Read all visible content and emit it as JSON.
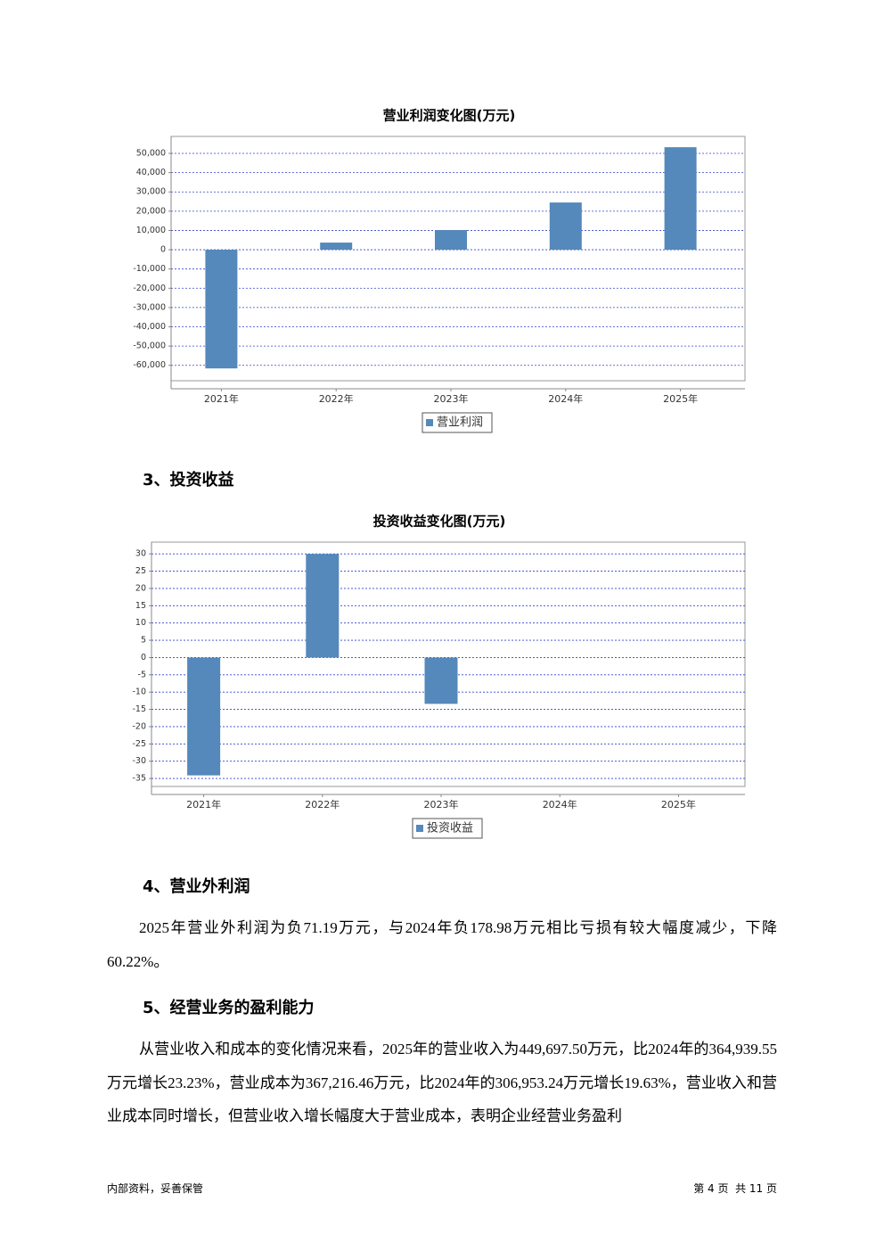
{
  "chart_data": [
    {
      "type": "bar",
      "title": "营业利润变化图(万元)",
      "categories": [
        "2021年",
        "2022年",
        "2023年",
        "2024年",
        "2025年"
      ],
      "series": [
        {
          "name": "营业利润",
          "color": "#5588bb",
          "values": [
            -61600,
            3700,
            10200,
            24500,
            53200
          ]
        }
      ],
      "ylim": [
        -68000,
        58800
      ],
      "yticks": [
        {
          "value": 50000,
          "label": "50,000"
        },
        {
          "value": 40000,
          "label": "40,000"
        },
        {
          "value": 30000,
          "label": "30,000"
        },
        {
          "value": 20000,
          "label": "20,000"
        },
        {
          "value": 10000,
          "label": "10,000"
        },
        0,
        {
          "value": -10000,
          "label": "-10,000"
        },
        {
          "value": -20000,
          "label": "-20,000"
        },
        {
          "value": -30000,
          "label": "-30,000"
        },
        {
          "value": -40000,
          "label": "-40,000"
        },
        {
          "value": -50000,
          "label": "-50,000"
        },
        {
          "value": -60000,
          "label": "-60,000"
        }
      ],
      "grid": true
    },
    {
      "type": "bar",
      "title": "投资收益变化图(万元)",
      "categories": [
        "2021年",
        "2022年",
        "2023年",
        "2024年",
        "2025年"
      ],
      "series": [
        {
          "name": "投资收益",
          "color": "#5588bb",
          "values": [
            -34.1,
            30,
            -13.4,
            null,
            null
          ]
        }
      ],
      "ylim": [
        -37.3,
        33.4
      ],
      "yticks": [
        30,
        25,
        20,
        15,
        10,
        5,
        0,
        -5,
        -10,
        -15,
        -20,
        -25,
        -30,
        -35
      ],
      "grid": true
    }
  ],
  "headings": [
    "3、投资收益",
    "4、营业外利润",
    "5、经营业务的盈利能力"
  ],
  "paragraphs": [
    "2025年营业外利润为负71.19万元，与2024年负178.98万元相比亏损有较大幅度减少，下降60.22%。",
    "从营业收入和成本的变化情况来看，2025年的营业收入为449,697.50万元，比2024年的364,939.55万元增长23.23%，营业成本为367,216.46万元，比2024年的306,953.24万元增长19.63%，营业收入和营业成本同时增长，但营业收入增长幅度大于营业成本，表明企业经营业务盈利"
  ],
  "footer": {
    "left": "内部资料，妥善保管",
    "right": "第 4 页  共 11 页"
  }
}
